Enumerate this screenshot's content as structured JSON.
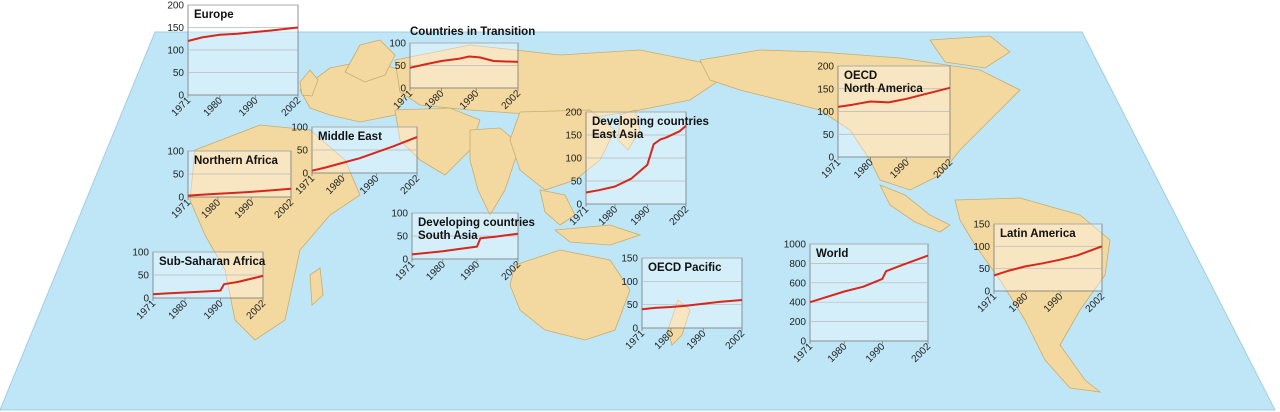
{
  "colors": {
    "ocean": "#bfe6f7",
    "land": "#f3d9a0",
    "land_border": "#c9ac6e",
    "line": "#d8261c",
    "grid": "#b8b8b8",
    "frame": "#777777"
  },
  "chart_data": [
    {
      "type": "line",
      "title": "Europe",
      "x": [
        1971,
        1975,
        1980,
        1985,
        1990,
        1995,
        2002
      ],
      "values": [
        120,
        128,
        134,
        136,
        140,
        144,
        150
      ],
      "ylim": [
        0,
        200
      ],
      "yticks": [
        0,
        50,
        100,
        150,
        200
      ],
      "xticks": [
        "1971",
        "1980",
        "1990",
        "2002"
      ]
    },
    {
      "type": "line",
      "title": "Countries in Transition",
      "x": [
        1971,
        1975,
        1980,
        1985,
        1988,
        1991,
        1995,
        2002
      ],
      "values": [
        45,
        52,
        60,
        65,
        70,
        68,
        60,
        58
      ],
      "ylim": [
        0,
        100
      ],
      "yticks": [
        0,
        50,
        100
      ],
      "xticks": [
        "1971",
        "1980",
        "1990",
        "2002"
      ]
    },
    {
      "type": "line",
      "title": "Middle East",
      "x": [
        1971,
        1975,
        1980,
        1985,
        1990,
        1995,
        2002
      ],
      "values": [
        5,
        12,
        22,
        32,
        45,
        58,
        78
      ],
      "ylim": [
        0,
        100
      ],
      "yticks": [
        0,
        50,
        100
      ],
      "xticks": [
        "1971",
        "1980",
        "1990",
        "2002"
      ]
    },
    {
      "type": "line",
      "title": "Northern Africa",
      "x": [
        1971,
        1975,
        1980,
        1985,
        1990,
        1995,
        2002
      ],
      "values": [
        3,
        5,
        7,
        9,
        11,
        14,
        18
      ],
      "ylim": [
        0,
        100
      ],
      "yticks": [
        0,
        50,
        100
      ],
      "xticks": [
        "1971",
        "1980",
        "1990",
        "2002"
      ]
    },
    {
      "type": "line",
      "title": "Sub-Saharan Africa",
      "x": [
        1971,
        1975,
        1980,
        1985,
        1990,
        1991,
        1995,
        2002
      ],
      "values": [
        8,
        10,
        12,
        14,
        16,
        30,
        35,
        48
      ],
      "ylim": [
        0,
        100
      ],
      "yticks": [
        0,
        50,
        100
      ],
      "xticks": [
        "1971",
        "1980",
        "1990",
        "2002"
      ]
    },
    {
      "type": "line",
      "title": "Developing countries\nSouth Asia",
      "x": [
        1971,
        1975,
        1980,
        1985,
        1990,
        1991,
        1995,
        2002
      ],
      "values": [
        10,
        13,
        17,
        22,
        27,
        45,
        48,
        55
      ],
      "ylim": [
        0,
        100
      ],
      "yticks": [
        0,
        50,
        100
      ],
      "xticks": [
        "1971",
        "1980",
        "1990",
        "2002"
      ]
    },
    {
      "type": "line",
      "title": "Developing countries\nEast Asia",
      "x": [
        1971,
        1975,
        1980,
        1985,
        1990,
        1992,
        1994,
        1996,
        2000,
        2002
      ],
      "values": [
        25,
        30,
        38,
        55,
        85,
        130,
        140,
        145,
        158,
        170
      ],
      "ylim": [
        0,
        200
      ],
      "yticks": [
        0,
        50,
        100,
        150,
        200
      ],
      "xticks": [
        "1971",
        "1980",
        "1990",
        "2002"
      ]
    },
    {
      "type": "line",
      "title": "OECD\nNorth America",
      "x": [
        1971,
        1975,
        1980,
        1985,
        1990,
        1995,
        2002
      ],
      "values": [
        110,
        115,
        122,
        120,
        128,
        138,
        152
      ],
      "ylim": [
        0,
        200
      ],
      "yticks": [
        0,
        50,
        100,
        150,
        200
      ],
      "xticks": [
        "1971",
        "1980",
        "1990",
        "2002"
      ]
    },
    {
      "type": "line",
      "title": "OECD Pacific",
      "x": [
        1971,
        1975,
        1980,
        1985,
        1990,
        1995,
        2002
      ],
      "values": [
        40,
        43,
        45,
        48,
        52,
        56,
        60
      ],
      "ylim": [
        0,
        150
      ],
      "yticks": [
        0,
        50,
        100,
        150
      ],
      "xticks": [
        "1971",
        "1980",
        "1990",
        "2002"
      ]
    },
    {
      "type": "line",
      "title": "World",
      "x": [
        1971,
        1975,
        1980,
        1985,
        1990,
        1991,
        1995,
        2002
      ],
      "values": [
        400,
        450,
        510,
        560,
        640,
        720,
        780,
        880
      ],
      "ylim": [
        0,
        1000
      ],
      "yticks": [
        0,
        200,
        400,
        600,
        800,
        1000
      ],
      "xticks": [
        "1971",
        "1980",
        "1990",
        "2002"
      ]
    },
    {
      "type": "line",
      "title": "Latin America",
      "x": [
        1971,
        1975,
        1980,
        1985,
        1990,
        1995,
        2002
      ],
      "values": [
        35,
        45,
        55,
        62,
        70,
        80,
        100
      ],
      "ylim": [
        0,
        150
      ],
      "yticks": [
        0,
        50,
        100,
        150
      ],
      "xticks": [
        "1971",
        "1980",
        "1990",
        "2002"
      ]
    }
  ]
}
